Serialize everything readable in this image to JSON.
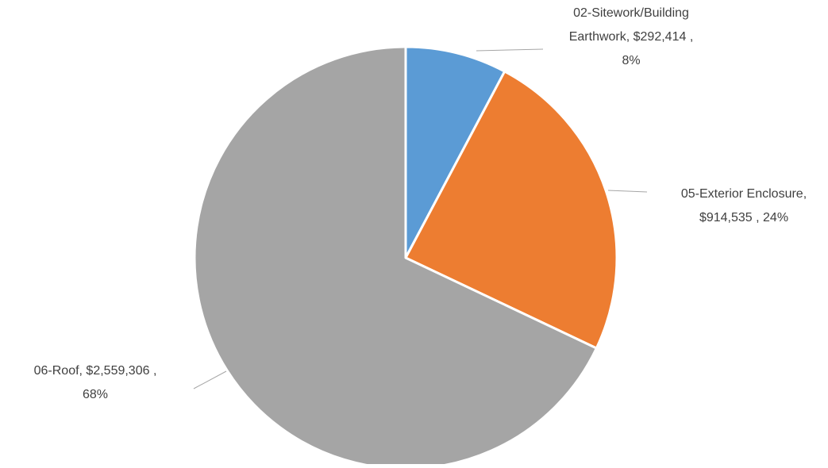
{
  "chart_data": {
    "type": "pie",
    "title": "",
    "slices": [
      {
        "category": "02-Sitework/Building Earthwork",
        "value": 292414,
        "value_label": "$292,414",
        "percent": 8,
        "percent_label": "8%",
        "color": "#5b9bd5",
        "label_lines": [
          "02-Sitework/Building",
          "Earthwork,  $292,414 ,",
          "8%"
        ]
      },
      {
        "category": "05-Exterior Enclosure",
        "value": 914535,
        "value_label": "$914,535",
        "percent": 24,
        "percent_label": "24%",
        "color": "#ed7d31",
        "label_lines": [
          "05-Exterior Enclosure,",
          "$914,535 , 24%"
        ]
      },
      {
        "category": "06-Roof",
        "value": 2559306,
        "value_label": "$2,559,306",
        "percent": 68,
        "percent_label": "68%",
        "color": "#a5a5a5",
        "label_lines": [
          "06-Roof,  $2,559,306 ,",
          "68%"
        ]
      }
    ],
    "start_angle": "12 o'clock",
    "direction": "clockwise",
    "legend": "none",
    "data_labels": "outside with leader lines"
  }
}
